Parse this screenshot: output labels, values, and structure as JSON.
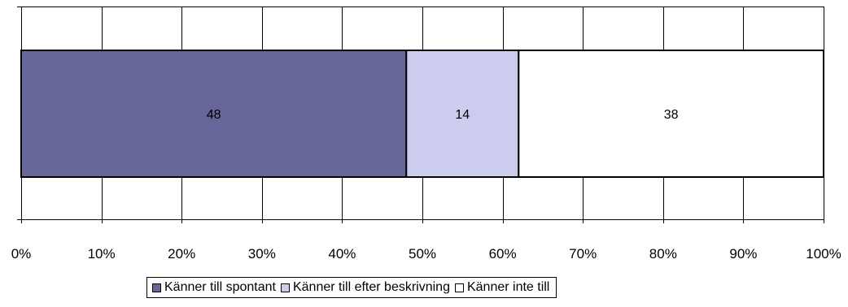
{
  "chart_data": {
    "type": "bar",
    "orientation": "horizontal",
    "stacked": true,
    "title": "",
    "xlabel": "",
    "ylabel": "",
    "xlim": [
      0,
      100
    ],
    "x_ticks": [
      "0%",
      "10%",
      "20%",
      "30%",
      "40%",
      "50%",
      "60%",
      "70%",
      "80%",
      "90%",
      "100%"
    ],
    "categories": [
      ""
    ],
    "grid": true,
    "legend_position": "bottom",
    "series": [
      {
        "name": "Känner till spontant",
        "values": [
          48
        ],
        "label": "48",
        "color": "#666699"
      },
      {
        "name": "Känner till efter beskrivning",
        "values": [
          14
        ],
        "label": "14",
        "color": "#ccccee"
      },
      {
        "name": "Känner inte till",
        "values": [
          38
        ],
        "label": "38",
        "color": "#ffffff"
      }
    ]
  }
}
